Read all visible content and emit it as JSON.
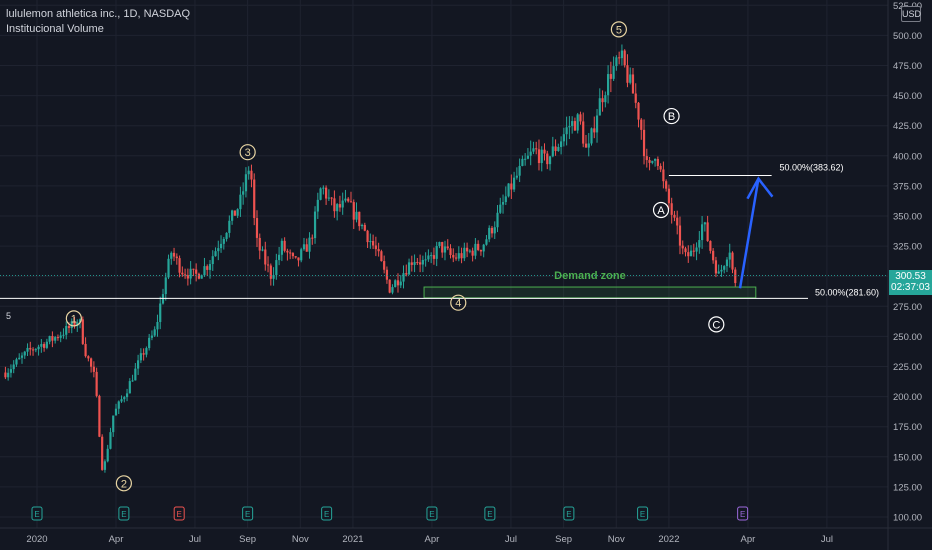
{
  "header": {
    "title": "lululemon athletica inc., 1D, NASDAQ",
    "indicator": "Institucional Volume"
  },
  "currency": "USD",
  "side_marker": "5",
  "last_price": {
    "value": "300.53",
    "countdown": "02:37:03"
  },
  "colors": {
    "background": "#131722",
    "up": "#26a69a",
    "down": "#ef5350",
    "demand_zone": "#4caf50",
    "arrow": "#2962ff",
    "grid": "#1f2330"
  },
  "chart_data": {
    "type": "candlestick",
    "title": "lululemon athletica inc., 1D, NASDAQ",
    "y_axis": {
      "ticks": [
        100,
        125,
        150,
        175,
        200,
        225,
        250,
        275,
        300,
        325,
        350,
        375,
        400,
        425,
        450,
        475,
        500,
        525
      ],
      "ylim": [
        96,
        528
      ]
    },
    "x_axis": {
      "ticks": [
        {
          "label": "2020",
          "t": 0
        },
        {
          "label": "Apr",
          "t": 3
        },
        {
          "label": "Jul",
          "t": 6
        },
        {
          "label": "Sep",
          "t": 8
        },
        {
          "label": "Nov",
          "t": 10
        },
        {
          "label": "2021",
          "t": 12
        },
        {
          "label": "Apr",
          "t": 15
        },
        {
          "label": "Jul",
          "t": 18
        },
        {
          "label": "Sep",
          "t": 20
        },
        {
          "label": "Nov",
          "t": 22
        },
        {
          "label": "2022",
          "t": 24
        },
        {
          "label": "Apr",
          "t": 27
        },
        {
          "label": "Jul",
          "t": 30
        }
      ],
      "t_unit": "months since Jan 2020"
    },
    "price_path": [
      [
        -1.2,
        220
      ],
      [
        -0.3,
        238
      ],
      [
        0.6,
        248
      ],
      [
        1.3,
        258
      ],
      [
        1.6,
        265
      ],
      [
        1.8,
        240
      ],
      [
        2.2,
        215
      ],
      [
        2.5,
        135
      ],
      [
        2.9,
        185
      ],
      [
        3.4,
        205
      ],
      [
        4.0,
        235
      ],
      [
        4.5,
        255
      ],
      [
        4.8,
        290
      ],
      [
        5.1,
        320
      ],
      [
        5.5,
        305
      ],
      [
        6.0,
        300
      ],
      [
        6.5,
        310
      ],
      [
        7.2,
        340
      ],
      [
        7.7,
        360
      ],
      [
        8.1,
        395
      ],
      [
        8.3,
        330
      ],
      [
        8.6,
        315
      ],
      [
        8.9,
        300
      ],
      [
        9.3,
        325
      ],
      [
        9.8,
        310
      ],
      [
        10.4,
        330
      ],
      [
        10.8,
        375
      ],
      [
        11.3,
        355
      ],
      [
        11.8,
        360
      ],
      [
        12.4,
        340
      ],
      [
        12.9,
        320
      ],
      [
        13.4,
        290
      ],
      [
        13.8,
        300
      ],
      [
        14.3,
        315
      ],
      [
        14.8,
        310
      ],
      [
        15.3,
        325
      ],
      [
        15.8,
        315
      ],
      [
        16.4,
        320
      ],
      [
        16.9,
        325
      ],
      [
        17.4,
        345
      ],
      [
        17.9,
        370
      ],
      [
        18.4,
        390
      ],
      [
        18.9,
        405
      ],
      [
        19.3,
        395
      ],
      [
        19.8,
        410
      ],
      [
        20.2,
        425
      ],
      [
        20.6,
        430
      ],
      [
        20.9,
        400
      ],
      [
        21.3,
        440
      ],
      [
        21.8,
        470
      ],
      [
        22.2,
        480
      ],
      [
        22.6,
        455
      ],
      [
        22.9,
        430
      ],
      [
        23.2,
        385
      ],
      [
        23.5,
        405
      ],
      [
        23.8,
        375
      ],
      [
        24.2,
        345
      ],
      [
        24.6,
        315
      ],
      [
        24.9,
        320
      ],
      [
        25.3,
        345
      ],
      [
        25.6,
        320
      ],
      [
        25.9,
        300
      ],
      [
        26.3,
        325
      ],
      [
        26.5,
        290
      ],
      [
        26.6,
        301
      ]
    ],
    "levels": [
      {
        "label": "50.00%(281.60)",
        "value": 281.6
      },
      {
        "label": "50.00%(383.62)",
        "value": 383.62
      }
    ],
    "zones": [
      {
        "label": "Demand zone",
        "from": 282,
        "to": 291
      }
    ],
    "wave_labels": [
      {
        "label": "1",
        "t": 1.4,
        "y": 265
      },
      {
        "label": "2",
        "t": 3.3,
        "y": 128
      },
      {
        "label": "3",
        "t": 8.0,
        "y": 403
      },
      {
        "label": "4",
        "t": 16.0,
        "y": 278
      },
      {
        "label": "5",
        "t": 22.1,
        "y": 505
      },
      {
        "label": "A",
        "t": 23.7,
        "y": 355
      },
      {
        "label": "B",
        "t": 24.1,
        "y": 433
      },
      {
        "label": "C",
        "t": 25.8,
        "y": 260
      }
    ],
    "earnings_markers": [
      {
        "t": 0.0,
        "label": "E"
      },
      {
        "t": 3.3,
        "label": "E"
      },
      {
        "t": 5.4,
        "label": "E"
      },
      {
        "t": 8.0,
        "label": "E"
      },
      {
        "t": 11.0,
        "label": "E"
      },
      {
        "t": 15.0,
        "label": "E"
      },
      {
        "t": 17.2,
        "label": "E"
      },
      {
        "t": 20.2,
        "label": "E"
      },
      {
        "t": 23.0,
        "label": "E"
      },
      {
        "t": 26.8,
        "label": "E"
      }
    ]
  }
}
